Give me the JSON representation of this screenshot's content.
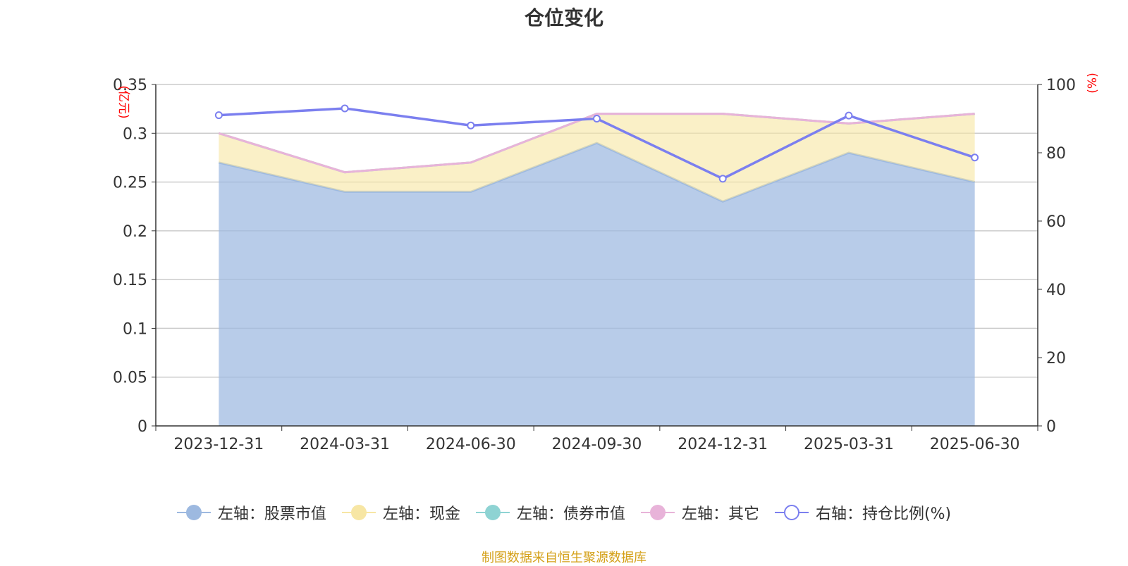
{
  "chart_data": {
    "type": "area",
    "title": "仓位变化",
    "categories": [
      "2023-12-31",
      "2024-03-31",
      "2024-06-30",
      "2024-09-30",
      "2024-12-31",
      "2025-03-31",
      "2025-06-30"
    ],
    "left_axis": {
      "unit": "(亿元)",
      "ylim": [
        0,
        0.35
      ],
      "ticks": [
        "0",
        "0.05",
        "0.1",
        "0.15",
        "0.2",
        "0.25",
        "0.3",
        "0.35"
      ]
    },
    "right_axis": {
      "unit": "(%)",
      "ylim": [
        0,
        100
      ],
      "ticks": [
        "0",
        "20",
        "40",
        "60",
        "80",
        "100"
      ]
    },
    "grid": true,
    "legend_position": "bottom",
    "series": [
      {
        "name": "左轴：股票市值",
        "axis": "left",
        "color": "#9db9e0",
        "values": [
          0.27,
          0.24,
          0.24,
          0.29,
          0.23,
          0.28,
          0.25
        ]
      },
      {
        "name": "左轴：现金",
        "axis": "left",
        "color": "#f7e6a4",
        "values": [
          0.03,
          0.02,
          0.03,
          0.03,
          0.09,
          0.03,
          0.07
        ]
      },
      {
        "name": "左轴：债券市值",
        "axis": "left",
        "color": "#8ed3d3",
        "values": [
          0,
          0,
          0,
          0,
          0,
          0,
          0
        ]
      },
      {
        "name": "左轴：其它",
        "axis": "left",
        "color": "#e8b3d9",
        "values": [
          0,
          0,
          0,
          0,
          0,
          0,
          0
        ]
      },
      {
        "name": "右轴：持仓比例(%)",
        "axis": "right",
        "color": "#7b7fef",
        "values": [
          91.0,
          93.0,
          88.0,
          90.0,
          72.4,
          90.9,
          78.6
        ]
      }
    ]
  },
  "source_note": "制图数据来自恒生聚源数据库"
}
